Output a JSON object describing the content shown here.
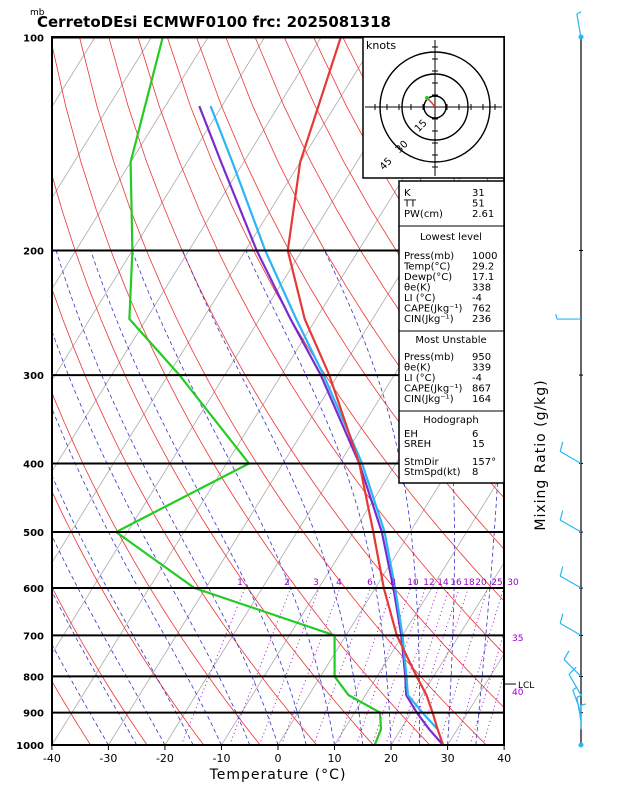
{
  "title": "CerretoDEsi ECMWF0100  frc: 2025081318",
  "pressure_unit": "mb",
  "xlabel": "Temperature (°C)",
  "side_label": "Mixing Ratio (g/kg)",
  "hodograph": {
    "unit": "knots",
    "rings": [
      "15",
      "30",
      "45"
    ]
  },
  "lcl_label": "LCL",
  "lcl_mark": "40",
  "mixing_right_label": "35",
  "mixing_labels": [
    "1",
    "2",
    "3",
    "4",
    "6",
    "8",
    "10",
    "12",
    "14",
    "16",
    "18",
    "20",
    "25",
    "30"
  ],
  "info": {
    "top": [
      {
        "k": "K",
        "v": "31"
      },
      {
        "k": "TT",
        "v": "51"
      },
      {
        "k": "PW(cm)",
        "v": "2.61"
      }
    ],
    "lowest_title": "Lowest level",
    "lowest": [
      {
        "k": "Press(mb)",
        "v": "1000"
      },
      {
        "k": "Temp(°C)",
        "v": "29.2"
      },
      {
        "k": "Dewp(°C)",
        "v": "17.1"
      },
      {
        "k": "θe(K)",
        "v": "338"
      },
      {
        "k": "LI (°C)",
        "v": "-4"
      },
      {
        "k": "CAPE(Jkg⁻¹)",
        "v": "762"
      },
      {
        "k": "CIN(Jkg⁻¹)",
        "v": "236"
      }
    ],
    "mu_title": "Most Unstable",
    "mu": [
      {
        "k": "Press(mb)",
        "v": "950"
      },
      {
        "k": "θe(K)",
        "v": "339"
      },
      {
        "k": "LI (°C)",
        "v": "-4"
      },
      {
        "k": "CAPE(Jkg⁻¹)",
        "v": "867"
      },
      {
        "k": "CIN(Jkg⁻¹)",
        "v": "164"
      }
    ],
    "hodo_title": "Hodograph",
    "hodo": [
      {
        "k": "EH",
        "v": "6"
      },
      {
        "k": "SREH",
        "v": "15"
      },
      {
        "k": "StmDir",
        "v": "157°"
      },
      {
        "k": "StmSpd(kt)",
        "v": "8"
      }
    ]
  },
  "chart_data": {
    "type": "skew-t",
    "title": "CerretoDEsi ECMWF0100  frc: 2025081318",
    "xlabel": "Temperature (°C)",
    "ylabel": "mb",
    "x_ticks": [
      -40,
      -30,
      -20,
      -10,
      0,
      10,
      20,
      30,
      40
    ],
    "p_ticks": [
      100,
      200,
      300,
      400,
      500,
      600,
      700,
      800,
      900,
      1000
    ],
    "xlim": [
      -40,
      40
    ],
    "plim": [
      1000,
      100
    ],
    "temperature": [
      {
        "p": 1000,
        "t": 29.2
      },
      {
        "p": 950,
        "t": 26.5
      },
      {
        "p": 900,
        "t": 23.8
      },
      {
        "p": 850,
        "t": 20.8
      },
      {
        "p": 800,
        "t": 17
      },
      {
        "p": 700,
        "t": 9
      },
      {
        "p": 600,
        "t": 1.5
      },
      {
        "p": 500,
        "t": -6.5
      },
      {
        "p": 400,
        "t": -16.5
      },
      {
        "p": 300,
        "t": -31.5
      },
      {
        "p": 250,
        "t": -42
      },
      {
        "p": 200,
        "t": -52.5
      },
      {
        "p": 150,
        "t": -60
      },
      {
        "p": 100,
        "t": -66.5
      }
    ],
    "dewpoint": [
      {
        "p": 1000,
        "t": 17.1
      },
      {
        "p": 950,
        "t": 16.5
      },
      {
        "p": 900,
        "t": 14.5
      },
      {
        "p": 850,
        "t": 7
      },
      {
        "p": 800,
        "t": 2.5
      },
      {
        "p": 700,
        "t": -2
      },
      {
        "p": 600,
        "t": -32
      },
      {
        "p": 500,
        "t": -52
      },
      {
        "p": 400,
        "t": -36
      },
      {
        "p": 300,
        "t": -58
      },
      {
        "p": 250,
        "t": -73
      },
      {
        "p": 200,
        "t": -80
      },
      {
        "p": 150,
        "t": -90
      },
      {
        "p": 100,
        "t": -98
      }
    ],
    "parcel": [
      {
        "p": 1000,
        "t": 29.2
      },
      {
        "p": 950,
        "t": 25
      },
      {
        "p": 900,
        "t": 21
      },
      {
        "p": 850,
        "t": 17.2
      },
      {
        "p": 800,
        "t": 15
      },
      {
        "p": 700,
        "t": 9.8
      },
      {
        "p": 600,
        "t": 3.2
      },
      {
        "p": 500,
        "t": -5
      },
      {
        "p": 400,
        "t": -16.5
      },
      {
        "p": 300,
        "t": -33
      },
      {
        "p": 250,
        "t": -44.5
      },
      {
        "p": 200,
        "t": -58
      },
      {
        "p": 150,
        "t": -74
      },
      {
        "p": 125,
        "t": -84
      }
    ],
    "env_lapse": [
      {
        "p": 950,
        "t": 26.5
      },
      {
        "p": 900,
        "t": 22
      },
      {
        "p": 850,
        "t": 17.5
      },
      {
        "p": 800,
        "t": 15.2
      },
      {
        "p": 700,
        "t": 10
      },
      {
        "p": 600,
        "t": 3.5
      },
      {
        "p": 500,
        "t": -4.5
      },
      {
        "p": 400,
        "t": -16
      },
      {
        "p": 300,
        "t": -32.5
      },
      {
        "p": 250,
        "t": -43.5
      },
      {
        "p": 200,
        "t": -56.5
      },
      {
        "p": 150,
        "t": -72
      },
      {
        "p": 125,
        "t": -82
      }
    ],
    "wind_barbs": [
      {
        "p": 100,
        "dir": 350,
        "spd": 5
      },
      {
        "p": 250,
        "dir": 270,
        "spd": 5
      },
      {
        "p": 400,
        "dir": 300,
        "spd": 10
      },
      {
        "p": 500,
        "dir": 300,
        "spd": 10
      },
      {
        "p": 600,
        "dir": 300,
        "spd": 10
      },
      {
        "p": 700,
        "dir": 300,
        "spd": 10
      },
      {
        "p": 800,
        "dir": 315,
        "spd": 10
      },
      {
        "p": 850,
        "dir": 330,
        "spd": 10
      },
      {
        "p": 900,
        "dir": 340,
        "spd": 5
      },
      {
        "p": 925,
        "dir": 350,
        "spd": 5
      },
      {
        "p": 950,
        "dir": 0,
        "spd": 5
      }
    ],
    "lcl_p": 820
  }
}
